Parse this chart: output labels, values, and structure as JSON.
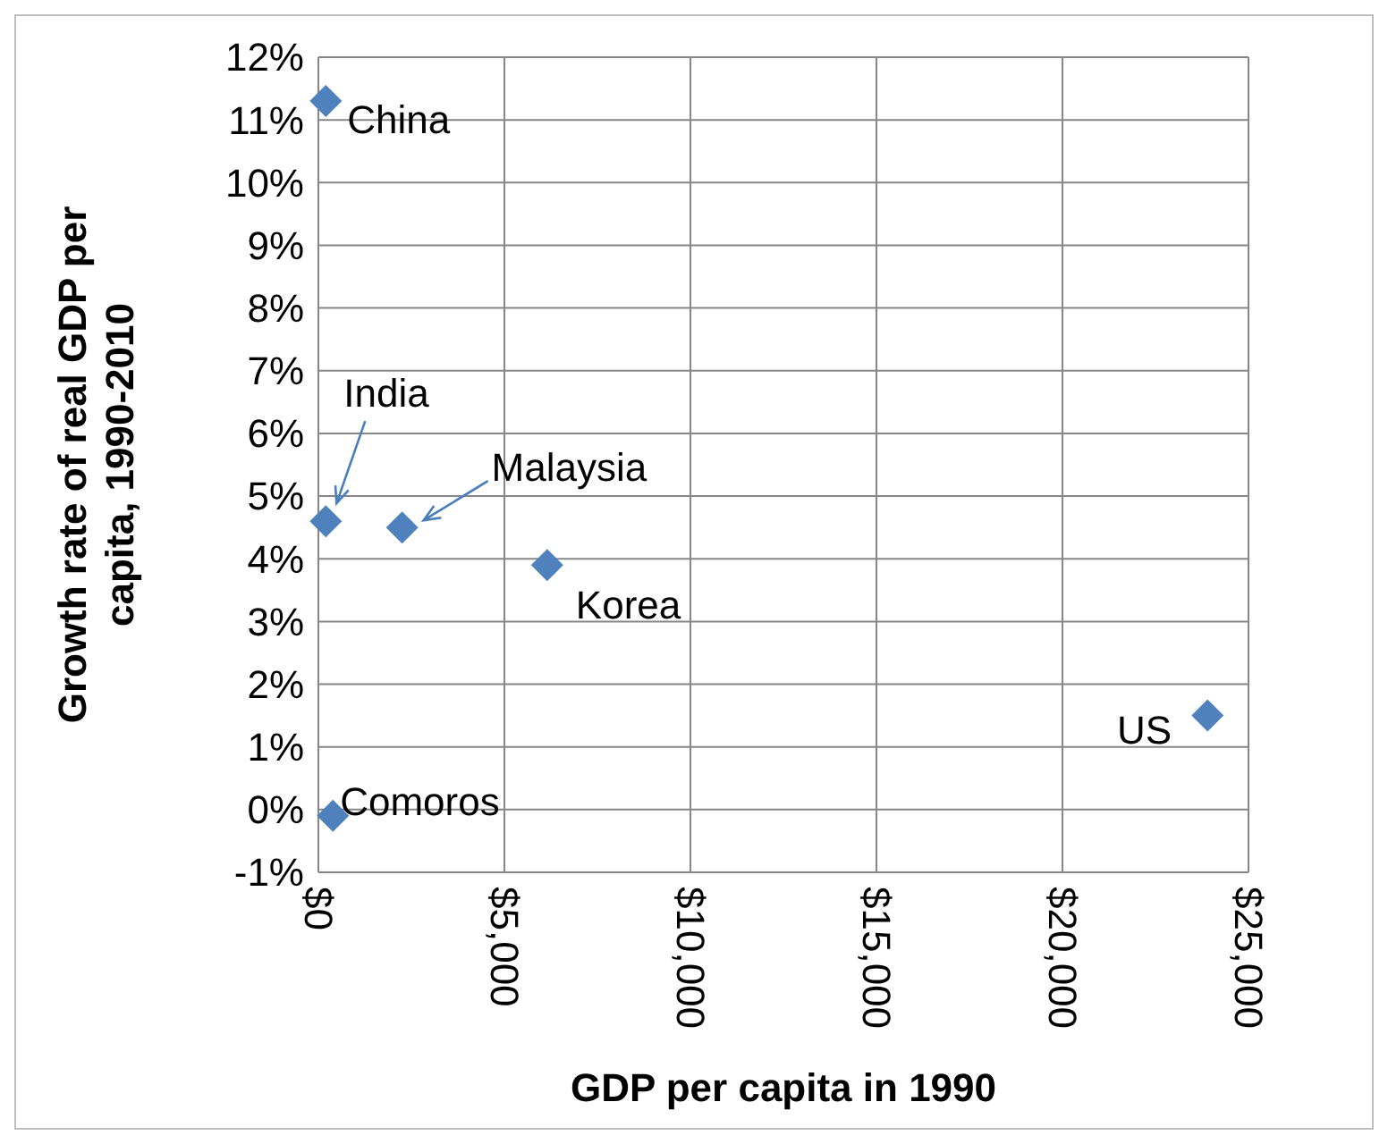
{
  "chart_data": {
    "type": "scatter",
    "xlabel": "GDP per capita in 1990",
    "ylabel": "Growth rate of real GDP per capita, 1990-2010",
    "x": [
      200,
      200,
      2250,
      6150,
      23900,
      390
    ],
    "values": [
      11.3,
      4.6,
      4.5,
      3.9,
      1.5,
      -0.1
    ],
    "color": "#4f81bd",
    "marker": "diamond",
    "grid": true,
    "xlim": [
      0,
      25000
    ],
    "xticks": [
      {
        "value": 0,
        "label": "$0"
      },
      {
        "value": 5000,
        "label": "$5,000"
      },
      {
        "value": 10000,
        "label": "$10,000"
      },
      {
        "value": 15000,
        "label": "$15,000"
      },
      {
        "value": 20000,
        "label": "$20,000"
      },
      {
        "value": 25000,
        "label": "$25,000"
      }
    ],
    "ylim": [
      -1,
      12
    ],
    "yticks": [
      {
        "value": -1,
        "label": "-1%"
      },
      {
        "value": 0,
        "label": "0%"
      },
      {
        "value": 1,
        "label": "1%"
      },
      {
        "value": 2,
        "label": "2%"
      },
      {
        "value": 3,
        "label": "3%"
      },
      {
        "value": 4,
        "label": "4%"
      },
      {
        "value": 5,
        "label": "5%"
      },
      {
        "value": 6,
        "label": "6%"
      },
      {
        "value": 7,
        "label": "7%"
      },
      {
        "value": 8,
        "label": "8%"
      },
      {
        "value": 9,
        "label": "9%"
      },
      {
        "value": 10,
        "label": "10%"
      },
      {
        "value": 11,
        "label": "11%"
      },
      {
        "value": 12,
        "label": "12%"
      }
    ],
    "annotations": [
      {
        "text": "China",
        "x": 200,
        "y": 11.3
      },
      {
        "text": "India",
        "x": 200,
        "y": 4.6
      },
      {
        "text": "Malaysia",
        "x": 2250,
        "y": 4.5
      },
      {
        "text": "Korea",
        "x": 6150,
        "y": 3.9
      },
      {
        "text": "US",
        "x": 23900,
        "y": 1.5
      },
      {
        "text": "Comoros",
        "x": 390,
        "y": -0.1
      }
    ]
  }
}
